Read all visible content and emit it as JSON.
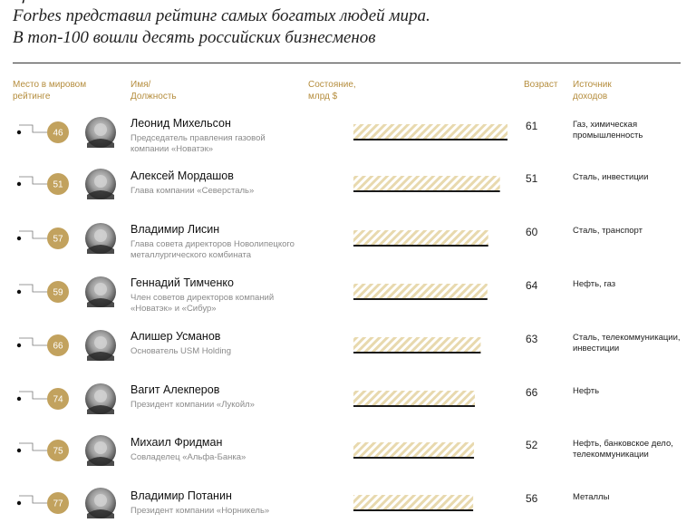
{
  "title": {
    "line1": "Forbes представил рейтинг самых богатых людей мира.",
    "line2": "В топ-100 вошли десять российских бизнесменов"
  },
  "headers": {
    "rank": [
      "Место в мировом",
      "рейтинге"
    ],
    "name": [
      "Имя/",
      "Должность"
    ],
    "wealth": [
      "Состояние,",
      "млрд $"
    ],
    "age": [
      "Возраст"
    ],
    "source": [
      "Источник",
      "доходов"
    ]
  },
  "colors": {
    "accent": "#b58d3d",
    "rank_circle": "#c2a25e",
    "bar_hatch": "#e8d9ae",
    "bar_base": "#1a1a1a"
  },
  "people": [
    {
      "rank": "46",
      "name": "Леонид Михельсон",
      "role": "Председатель правления газовой компании «Новатэк»",
      "wealth": "18,4",
      "age": "61",
      "source": "Газ, химическая промышленность"
    },
    {
      "rank": "51",
      "name": "Алексей Мордашов",
      "role": "Глава компании «Северсталь»",
      "wealth": "17,5",
      "age": "51",
      "source": "Сталь, инвестиции"
    },
    {
      "rank": "57",
      "name": "Владимир Лисин",
      "role": "Глава совета директоров Новолипецкого металлургического комбината",
      "wealth": "16,1",
      "age": "60",
      "source": "Сталь, транспорт"
    },
    {
      "rank": "59",
      "name": "Геннадий Тимченко",
      "role": "Член советов директоров компаний «Новатэк» и «Сибур»",
      "wealth": "16,0",
      "age": "64",
      "source": "Нефть, газ"
    },
    {
      "rank": "66",
      "name": "Алишер Усманов",
      "role": "Основатель USM Holding",
      "wealth": "15,2",
      "age": "63",
      "source": "Сталь, телекоммуникации, инвестиции"
    },
    {
      "rank": "74",
      "name": "Вагит Алекперов",
      "role": "Президент компании «Лукойл»",
      "wealth": "14,5",
      "age": "66",
      "source": "Нефть"
    },
    {
      "rank": "75",
      "name": "Михаил Фридман",
      "role": "Совладелец «Альфа-Банка»",
      "wealth": "14,4",
      "age": "52",
      "source": "Нефть, банковское дело, телекоммуникации"
    },
    {
      "rank": "77",
      "name": "Владимир Потанин",
      "role": "Президент компании «Норникель»",
      "wealth": "14,3",
      "age": "56",
      "source": "Металлы"
    }
  ],
  "chart_data": {
    "type": "bar",
    "orientation": "horizontal",
    "title": "Forbes представил рейтинг самых богатых людей мира. В топ-100 вошли десять российских бизнесменов",
    "categories": [
      "Леонид Михельсон",
      "Алексей Мордашов",
      "Владимир Лисин",
      "Геннадий Тимченко",
      "Алишер Усманов",
      "Вагит Алекперов",
      "Михаил Фридман",
      "Владимир Потанин"
    ],
    "values": [
      18.4,
      17.5,
      16.1,
      16.0,
      15.2,
      14.5,
      14.4,
      14.3
    ],
    "value_labels": [
      "18,4",
      "17,5",
      "16,1",
      "16,0",
      "15,2",
      "14,5",
      "14,4",
      "14,3"
    ],
    "ranks": [
      46,
      51,
      57,
      59,
      66,
      74,
      75,
      77
    ],
    "xlabel": "Состояние, млрд $",
    "xlim": [
      0,
      18.4
    ],
    "grid": false,
    "legend": "none"
  }
}
